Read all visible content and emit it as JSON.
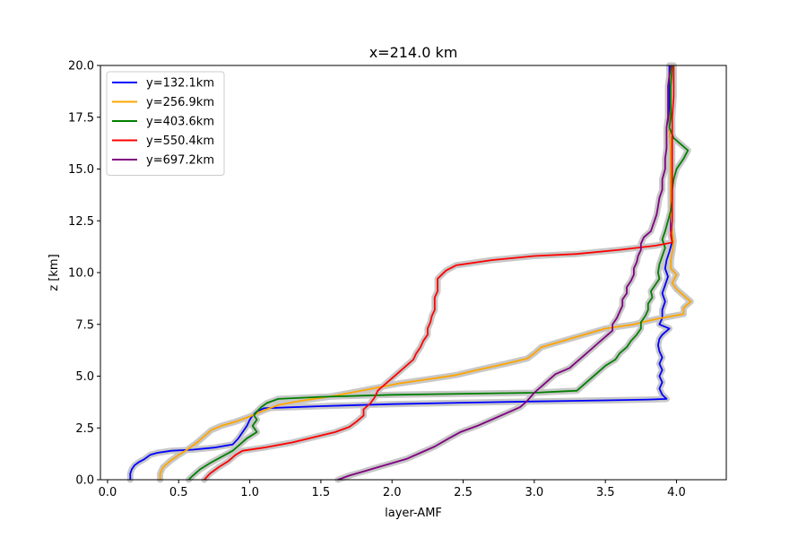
{
  "chart_data": {
    "type": "line",
    "title": "x=214.0 km",
    "xlabel": "layer-AMF",
    "ylabel": "z [km]",
    "xlim": [
      -0.05,
      4.35
    ],
    "ylim": [
      0,
      20
    ],
    "xticks": [
      0.0,
      0.5,
      1.0,
      1.5,
      2.0,
      2.5,
      3.0,
      3.5,
      4.0
    ],
    "xtick_labels": [
      "0.0",
      "0.5",
      "1.0",
      "1.5",
      "2.0",
      "2.5",
      "3.0",
      "3.5",
      "4.0"
    ],
    "yticks": [
      0.0,
      2.5,
      5.0,
      7.5,
      10.0,
      12.5,
      15.0,
      17.5,
      20.0
    ],
    "ytick_labels": [
      "0.0",
      "2.5",
      "5.0",
      "7.5",
      "10.0",
      "12.5",
      "15.0",
      "17.5",
      "20.0"
    ],
    "grid": false,
    "legend_position": "top-left",
    "uncertainty_band_color": "#c8c8c8",
    "series": [
      {
        "name": "y=132.1km",
        "color": "#0000ff",
        "points": [
          [
            0.16,
            0
          ],
          [
            0.16,
            0.3
          ],
          [
            0.17,
            0.5
          ],
          [
            0.19,
            0.7
          ],
          [
            0.22,
            0.85
          ],
          [
            0.26,
            1.0
          ],
          [
            0.3,
            1.2
          ],
          [
            0.35,
            1.3
          ],
          [
            0.45,
            1.4
          ],
          [
            0.6,
            1.45
          ],
          [
            0.75,
            1.55
          ],
          [
            0.88,
            1.7
          ],
          [
            0.92,
            2.0
          ],
          [
            0.95,
            2.3
          ],
          [
            0.98,
            2.6
          ],
          [
            1.0,
            2.9
          ],
          [
            1.02,
            3.1
          ],
          [
            1.05,
            3.3
          ],
          [
            1.1,
            3.45
          ],
          [
            1.5,
            3.55
          ],
          [
            2.0,
            3.65
          ],
          [
            2.5,
            3.72
          ],
          [
            3.0,
            3.78
          ],
          [
            3.5,
            3.83
          ],
          [
            3.8,
            3.87
          ],
          [
            3.93,
            3.9
          ],
          [
            3.9,
            4.1
          ],
          [
            3.88,
            4.4
          ],
          [
            3.9,
            4.7
          ],
          [
            3.88,
            5.0
          ],
          [
            3.9,
            5.3
          ],
          [
            3.88,
            5.6
          ],
          [
            3.9,
            5.9
          ],
          [
            3.88,
            6.2
          ],
          [
            3.87,
            6.5
          ],
          [
            3.88,
            6.8
          ],
          [
            3.9,
            7.0
          ],
          [
            3.95,
            7.3
          ],
          [
            3.88,
            7.5
          ],
          [
            3.9,
            7.8
          ],
          [
            3.9,
            8.2
          ],
          [
            3.92,
            8.6
          ],
          [
            3.9,
            9.0
          ],
          [
            3.92,
            9.4
          ],
          [
            3.94,
            9.8
          ],
          [
            3.92,
            10.2
          ],
          [
            3.93,
            10.6
          ],
          [
            3.95,
            11.0
          ],
          [
            3.97,
            11.5
          ],
          [
            3.96,
            12.0
          ],
          [
            3.96,
            13.0
          ],
          [
            3.96,
            14.0
          ],
          [
            3.96,
            15.0
          ],
          [
            3.96,
            16.0
          ],
          [
            3.95,
            17.0
          ],
          [
            3.95,
            18.0
          ],
          [
            3.95,
            19.0
          ],
          [
            3.95,
            20.0
          ]
        ]
      },
      {
        "name": "y=256.9km",
        "color": "#ffa500",
        "points": [
          [
            0.37,
            0
          ],
          [
            0.37,
            0.3
          ],
          [
            0.39,
            0.6
          ],
          [
            0.44,
            0.9
          ],
          [
            0.5,
            1.2
          ],
          [
            0.57,
            1.5
          ],
          [
            0.63,
            1.8
          ],
          [
            0.68,
            2.1
          ],
          [
            0.73,
            2.4
          ],
          [
            0.8,
            2.6
          ],
          [
            0.9,
            2.8
          ],
          [
            1.0,
            3.05
          ],
          [
            1.1,
            3.35
          ],
          [
            1.2,
            3.6
          ],
          [
            1.35,
            3.8
          ],
          [
            1.55,
            4.0
          ],
          [
            1.75,
            4.25
          ],
          [
            1.9,
            4.45
          ],
          [
            2.05,
            4.65
          ],
          [
            2.25,
            4.85
          ],
          [
            2.45,
            5.05
          ],
          [
            2.6,
            5.3
          ],
          [
            2.8,
            5.6
          ],
          [
            2.95,
            5.85
          ],
          [
            3.0,
            6.1
          ],
          [
            3.05,
            6.4
          ],
          [
            3.2,
            6.7
          ],
          [
            3.35,
            7.0
          ],
          [
            3.5,
            7.3
          ],
          [
            3.7,
            7.5
          ],
          [
            3.85,
            7.75
          ],
          [
            4.05,
            8.0
          ],
          [
            4.05,
            8.3
          ],
          [
            4.1,
            8.6
          ],
          [
            4.05,
            8.9
          ],
          [
            4.0,
            9.2
          ],
          [
            3.97,
            9.5
          ],
          [
            4.0,
            9.9
          ],
          [
            3.96,
            10.2
          ],
          [
            3.96,
            10.6
          ],
          [
            3.97,
            11.0
          ],
          [
            3.98,
            11.5
          ],
          [
            3.97,
            12.0
          ],
          [
            3.96,
            13.0
          ],
          [
            3.96,
            14.0
          ],
          [
            3.96,
            15.0
          ],
          [
            3.96,
            16.0
          ],
          [
            3.95,
            17.0
          ],
          [
            3.96,
            18.0
          ],
          [
            3.96,
            19.0
          ],
          [
            3.96,
            20.0
          ]
        ]
      },
      {
        "name": "y=403.6km",
        "color": "#008000",
        "points": [
          [
            0.57,
            0
          ],
          [
            0.6,
            0.2
          ],
          [
            0.65,
            0.5
          ],
          [
            0.72,
            0.8
          ],
          [
            0.8,
            1.1
          ],
          [
            0.88,
            1.4
          ],
          [
            0.93,
            1.7
          ],
          [
            0.98,
            2.0
          ],
          [
            1.05,
            2.3
          ],
          [
            1.02,
            2.6
          ],
          [
            1.05,
            2.9
          ],
          [
            1.03,
            3.1
          ],
          [
            1.05,
            3.3
          ],
          [
            1.08,
            3.5
          ],
          [
            1.12,
            3.7
          ],
          [
            1.2,
            3.9
          ],
          [
            1.5,
            4.0
          ],
          [
            2.0,
            4.1
          ],
          [
            2.5,
            4.15
          ],
          [
            3.0,
            4.2
          ],
          [
            3.3,
            4.3
          ],
          [
            3.35,
            4.6
          ],
          [
            3.4,
            4.9
          ],
          [
            3.45,
            5.2
          ],
          [
            3.5,
            5.5
          ],
          [
            3.57,
            5.8
          ],
          [
            3.6,
            6.1
          ],
          [
            3.65,
            6.4
          ],
          [
            3.68,
            6.7
          ],
          [
            3.72,
            7.0
          ],
          [
            3.75,
            7.3
          ],
          [
            3.75,
            7.6
          ],
          [
            3.78,
            7.9
          ],
          [
            3.8,
            8.2
          ],
          [
            3.8,
            8.5
          ],
          [
            3.83,
            8.8
          ],
          [
            3.82,
            9.1
          ],
          [
            3.85,
            9.4
          ],
          [
            3.88,
            9.7
          ],
          [
            3.87,
            10.0
          ],
          [
            3.88,
            10.4
          ],
          [
            3.9,
            10.8
          ],
          [
            3.92,
            11.2
          ],
          [
            3.9,
            11.6
          ],
          [
            3.92,
            12.0
          ],
          [
            3.94,
            12.5
          ],
          [
            3.96,
            13.0
          ],
          [
            3.97,
            13.5
          ],
          [
            3.97,
            14.0
          ],
          [
            3.98,
            14.5
          ],
          [
            4.0,
            15.0
          ],
          [
            4.05,
            15.5
          ],
          [
            4.08,
            15.9
          ],
          [
            3.98,
            16.5
          ],
          [
            3.95,
            17.0
          ],
          [
            3.96,
            17.5
          ],
          [
            3.96,
            18.0
          ],
          [
            3.96,
            19.0
          ],
          [
            3.97,
            20.0
          ]
        ]
      },
      {
        "name": "y=550.4km",
        "color": "#ff0000",
        "points": [
          [
            0.68,
            0
          ],
          [
            0.72,
            0.3
          ],
          [
            0.78,
            0.6
          ],
          [
            0.85,
            0.9
          ],
          [
            0.9,
            1.2
          ],
          [
            0.95,
            1.4
          ],
          [
            1.1,
            1.55
          ],
          [
            1.3,
            1.8
          ],
          [
            1.45,
            2.05
          ],
          [
            1.6,
            2.3
          ],
          [
            1.7,
            2.55
          ],
          [
            1.75,
            2.8
          ],
          [
            1.8,
            3.1
          ],
          [
            1.8,
            3.4
          ],
          [
            1.85,
            3.7
          ],
          [
            1.88,
            4.0
          ],
          [
            1.9,
            4.3
          ],
          [
            1.95,
            4.6
          ],
          [
            2.0,
            4.9
          ],
          [
            2.05,
            5.2
          ],
          [
            2.1,
            5.5
          ],
          [
            2.15,
            5.8
          ],
          [
            2.17,
            6.1
          ],
          [
            2.2,
            6.4
          ],
          [
            2.22,
            6.7
          ],
          [
            2.25,
            7.0
          ],
          [
            2.25,
            7.3
          ],
          [
            2.27,
            7.6
          ],
          [
            2.28,
            7.9
          ],
          [
            2.3,
            8.2
          ],
          [
            2.3,
            8.5
          ],
          [
            2.3,
            8.8
          ],
          [
            2.32,
            9.1
          ],
          [
            2.32,
            9.4
          ],
          [
            2.32,
            9.7
          ],
          [
            2.35,
            9.9
          ],
          [
            2.38,
            10.1
          ],
          [
            2.45,
            10.35
          ],
          [
            2.7,
            10.6
          ],
          [
            3.0,
            10.8
          ],
          [
            3.3,
            10.9
          ],
          [
            3.6,
            11.1
          ],
          [
            3.85,
            11.3
          ],
          [
            3.97,
            11.45
          ],
          [
            3.96,
            11.8
          ],
          [
            3.97,
            12.5
          ],
          [
            3.97,
            13.5
          ],
          [
            3.97,
            14.5
          ],
          [
            3.97,
            15.5
          ],
          [
            3.97,
            16.5
          ],
          [
            3.97,
            17.5
          ],
          [
            3.98,
            18.5
          ],
          [
            3.98,
            19.5
          ],
          [
            3.98,
            20.0
          ]
        ]
      },
      {
        "name": "y=697.2km",
        "color": "#800080",
        "points": [
          [
            1.62,
            0
          ],
          [
            1.7,
            0.2
          ],
          [
            1.8,
            0.4
          ],
          [
            1.9,
            0.6
          ],
          [
            2.0,
            0.8
          ],
          [
            2.1,
            1.0
          ],
          [
            2.2,
            1.3
          ],
          [
            2.3,
            1.6
          ],
          [
            2.4,
            2.0
          ],
          [
            2.48,
            2.3
          ],
          [
            2.6,
            2.6
          ],
          [
            2.7,
            2.9
          ],
          [
            2.8,
            3.2
          ],
          [
            2.9,
            3.5
          ],
          [
            2.95,
            3.8
          ],
          [
            3.0,
            4.2
          ],
          [
            3.05,
            4.5
          ],
          [
            3.1,
            4.8
          ],
          [
            3.15,
            5.1
          ],
          [
            3.25,
            5.4
          ],
          [
            3.3,
            5.7
          ],
          [
            3.35,
            6.0
          ],
          [
            3.4,
            6.3
          ],
          [
            3.45,
            6.6
          ],
          [
            3.5,
            6.9
          ],
          [
            3.55,
            7.2
          ],
          [
            3.55,
            7.5
          ],
          [
            3.58,
            7.8
          ],
          [
            3.6,
            8.1
          ],
          [
            3.62,
            8.4
          ],
          [
            3.62,
            8.7
          ],
          [
            3.65,
            9.0
          ],
          [
            3.65,
            9.3
          ],
          [
            3.68,
            9.6
          ],
          [
            3.7,
            9.9
          ],
          [
            3.7,
            10.2
          ],
          [
            3.72,
            10.5
          ],
          [
            3.73,
            10.8
          ],
          [
            3.75,
            11.1
          ],
          [
            3.75,
            11.4
          ],
          [
            3.77,
            11.7
          ],
          [
            3.82,
            12.0
          ],
          [
            3.84,
            12.4
          ],
          [
            3.86,
            12.8
          ],
          [
            3.87,
            13.2
          ],
          [
            3.88,
            13.6
          ],
          [
            3.9,
            14.0
          ],
          [
            3.9,
            14.5
          ],
          [
            3.92,
            15.0
          ],
          [
            3.92,
            15.5
          ],
          [
            3.93,
            16.0
          ],
          [
            3.93,
            16.5
          ],
          [
            3.93,
            17.0
          ],
          [
            3.94,
            17.5
          ],
          [
            3.94,
            18.0
          ],
          [
            3.94,
            18.5
          ],
          [
            3.94,
            19.0
          ],
          [
            3.95,
            19.5
          ],
          [
            3.96,
            20.0
          ]
        ]
      }
    ]
  }
}
